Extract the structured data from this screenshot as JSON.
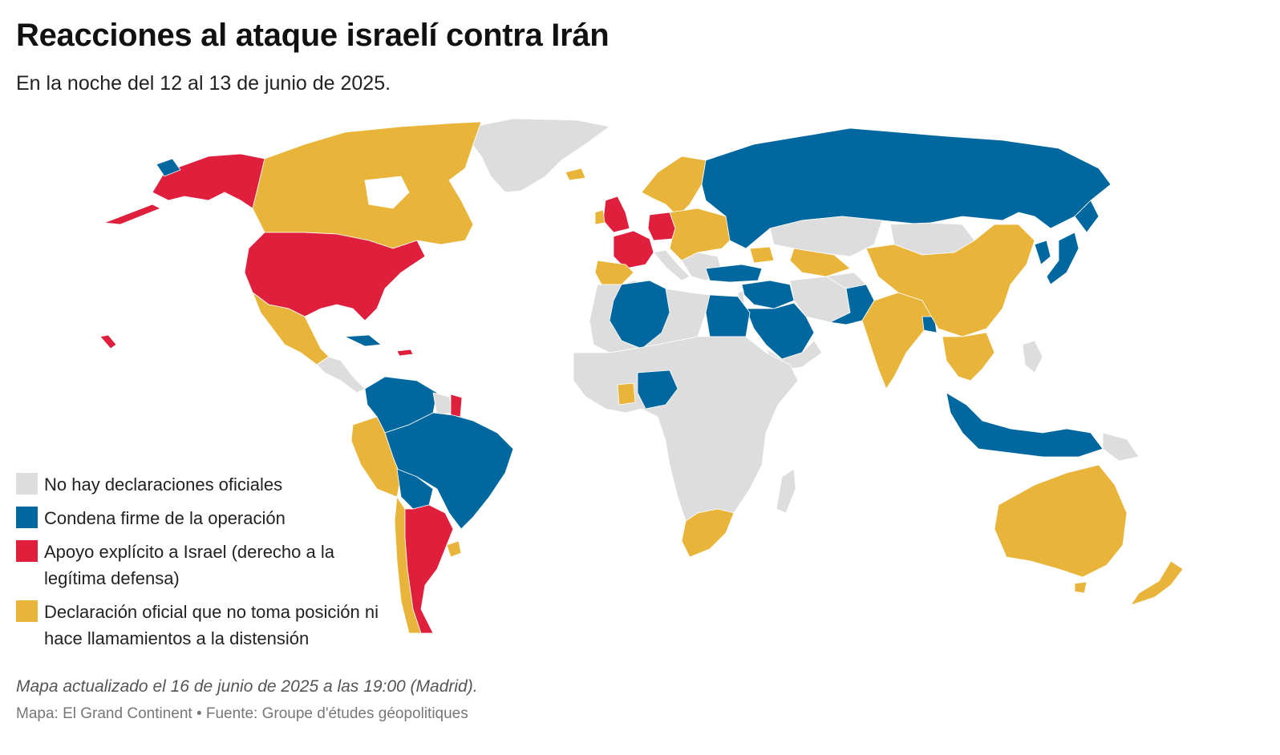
{
  "header": {
    "title": "Reacciones al ataque israelí contra Irán",
    "subtitle": "En la noche del 12 al 13 de junio de 2025."
  },
  "colors": {
    "none": "#dddddd",
    "condemn": "#00679f",
    "support": "#df1f3c",
    "neutral": "#e8b53a"
  },
  "legend": {
    "items": [
      {
        "key": "none",
        "label": "No hay declaraciones oficiales"
      },
      {
        "key": "condemn",
        "label": "Condena firme de la operación"
      },
      {
        "key": "support",
        "label": "Apoyo explícito a Israel (derecho a la legítima defensa)"
      },
      {
        "key": "neutral",
        "label": "Declaración oficial que no toma posición ni hace llamamientos a la distensión"
      }
    ]
  },
  "footer": {
    "note": "Mapa actualizado el 16 de junio de 2025 a las 19:00 (Madrid).",
    "credit": "Mapa: El Grand Continent • Fuente: Groupe d'études géopolitiques"
  }
}
